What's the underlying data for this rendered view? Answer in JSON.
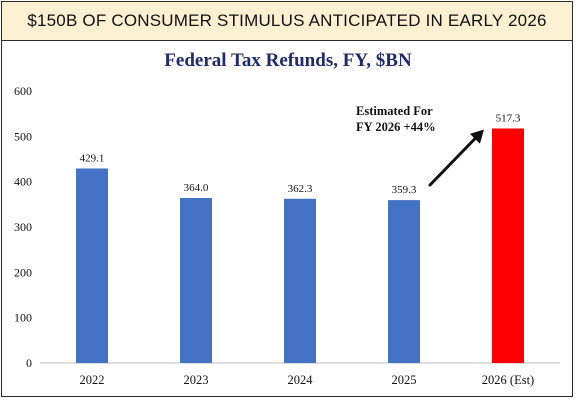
{
  "banner": {
    "title": "$150B OF CONSUMER STIMULUS ANTICIPATED IN EARLY 2026"
  },
  "annotation": {
    "line1": "Estimated For",
    "line2": "FY 2026 +44%"
  },
  "chart_data": {
    "type": "bar",
    "title": "Federal Tax Refunds, FY, $BN",
    "xlabel": "",
    "ylabel": "",
    "categories": [
      "2022",
      "2023",
      "2024",
      "2025",
      "2026 (Est)"
    ],
    "values": [
      429.1,
      364.0,
      362.3,
      359.3,
      517.3
    ],
    "data_labels": [
      "429.1",
      "364.0",
      "362.3",
      "359.3",
      "517.3"
    ],
    "ylim": [
      0,
      600
    ],
    "yticks": [
      0,
      100,
      200,
      300,
      400,
      500,
      600
    ],
    "grid": false,
    "legend": "none",
    "colors": {
      "default": "#4472c4",
      "highlight": "#ff0000",
      "highlight_index": 4
    }
  }
}
